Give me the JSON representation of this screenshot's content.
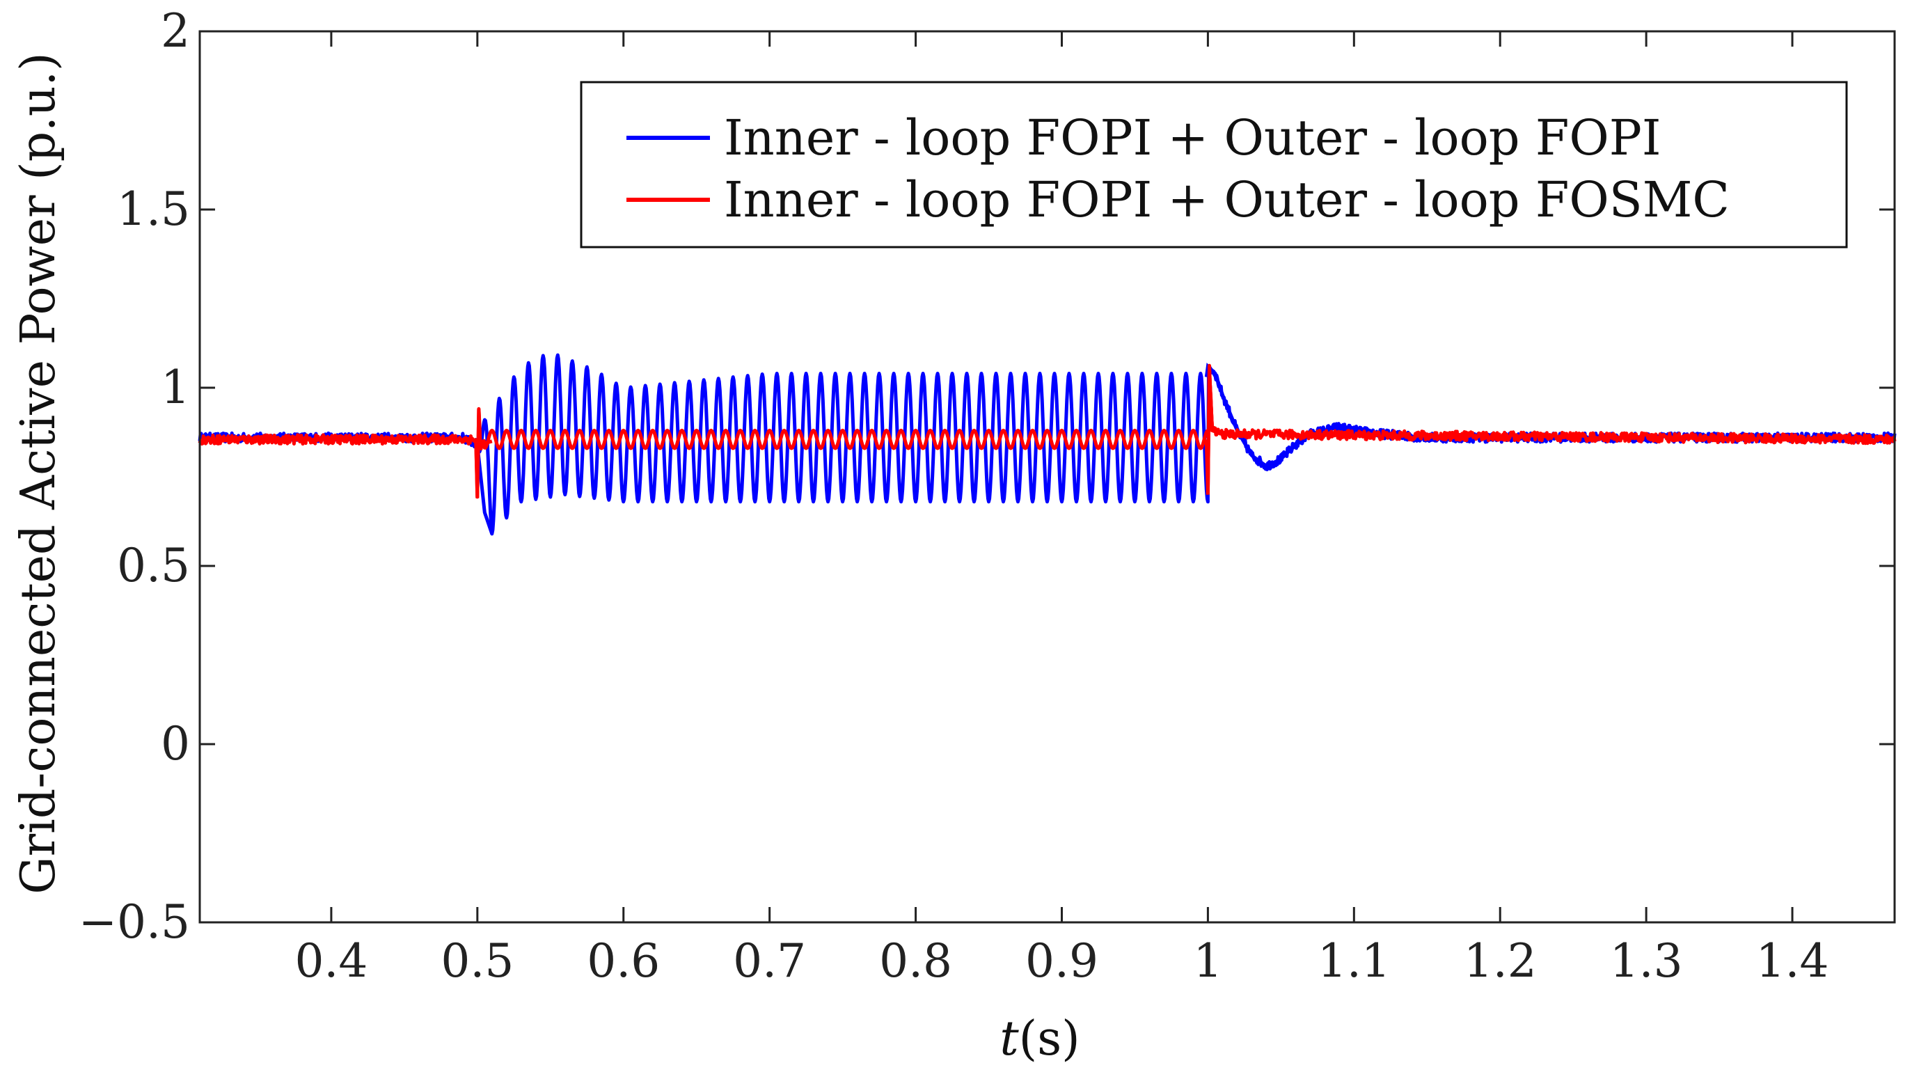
{
  "chart_data": {
    "type": "line",
    "title": "",
    "xlabel_italic": "t",
    "xlabel_rest": "(s)",
    "ylabel": "Grid-connected Active Power  (p.u.)",
    "xlim": [
      0.31,
      1.47
    ],
    "ylim": [
      -0.5,
      2
    ],
    "x_ticks": [
      0.4,
      0.5,
      0.6,
      0.7,
      0.8,
      0.9,
      1.0,
      1.1,
      1.2,
      1.3,
      1.4
    ],
    "x_tick_labels": [
      "0.4",
      "0.5",
      "0.6",
      "0.7",
      "0.8",
      "0.9",
      "1",
      "1.1",
      "1.2",
      "1.3",
      "1.4"
    ],
    "y_ticks": [
      -0.5,
      0,
      0.5,
      1,
      1.5,
      2
    ],
    "y_tick_labels": [
      "−0.5",
      "0",
      "0.5",
      "1",
      "1.5",
      "2"
    ],
    "grid": false,
    "legend_position": "top-right",
    "series": [
      {
        "name": "Inner - loop FOPI + Outer - loop FOPI",
        "color": "#0000ff",
        "steady_value": 0.86,
        "x": [
          0.31,
          0.49,
          0.5,
          0.505,
          0.51,
          0.52,
          0.53,
          0.54,
          0.55,
          0.56,
          0.57,
          0.58,
          0.6,
          0.65,
          0.7,
          0.75,
          0.8,
          0.85,
          0.9,
          0.95,
          0.999,
          1.0,
          1.005,
          1.01,
          1.02,
          1.03,
          1.04,
          1.05,
          1.06,
          1.07,
          1.08,
          1.09,
          1.1,
          1.12,
          1.15,
          1.2,
          1.3,
          1.4,
          1.47
        ],
        "y": [
          0.86,
          0.86,
          0.84,
          0.65,
          0.59,
          0.95,
          1.05,
          1.09,
          1.09,
          1.07,
          1.05,
          1.03,
          1.0,
          1.03,
          1.04,
          1.04,
          1.04,
          1.04,
          1.04,
          1.04,
          1.03,
          1.06,
          1.04,
          0.98,
          0.88,
          0.81,
          0.78,
          0.8,
          0.84,
          0.87,
          0.88,
          0.89,
          0.88,
          0.87,
          0.86,
          0.86,
          0.86,
          0.86,
          0.86
        ],
        "oscillation": {
          "start": 0.5,
          "end": 1.0,
          "period_s": 0.01,
          "lower_envelope_x": [
            0.5,
            0.51,
            0.53,
            0.56,
            0.6,
            0.7,
            0.8,
            0.9,
            1.0
          ],
          "lower_envelope_y": [
            0.84,
            0.59,
            0.68,
            0.7,
            0.68,
            0.68,
            0.68,
            0.68,
            0.68
          ],
          "upper_envelope_x": [
            0.5,
            0.51,
            0.53,
            0.55,
            0.58,
            0.6,
            0.7,
            0.8,
            0.9,
            1.0
          ],
          "upper_envelope_y": [
            0.88,
            0.94,
            1.06,
            1.1,
            1.05,
            1.0,
            1.04,
            1.04,
            1.04,
            1.04
          ]
        }
      },
      {
        "name": "Inner - loop FOPI + Outer - loop FOSMC",
        "color": "#ff0000",
        "steady_value": 0.855,
        "x": [
          0.31,
          0.499,
          0.5,
          0.501,
          0.502,
          0.51,
          0.999,
          1.0,
          1.001,
          1.003,
          1.01,
          1.47
        ],
        "y": [
          0.855,
          0.855,
          0.69,
          0.94,
          0.84,
          0.85,
          0.855,
          0.7,
          1.05,
          0.88,
          0.87,
          0.855
        ],
        "oscillation": {
          "start": 0.505,
          "end": 1.0,
          "period_s": 0.01,
          "lower_envelope_x": [
            0.505,
            1.0
          ],
          "lower_envelope_y": [
            0.83,
            0.83
          ],
          "upper_envelope_x": [
            0.505,
            1.0
          ],
          "upper_envelope_y": [
            0.88,
            0.88
          ]
        }
      }
    ]
  }
}
